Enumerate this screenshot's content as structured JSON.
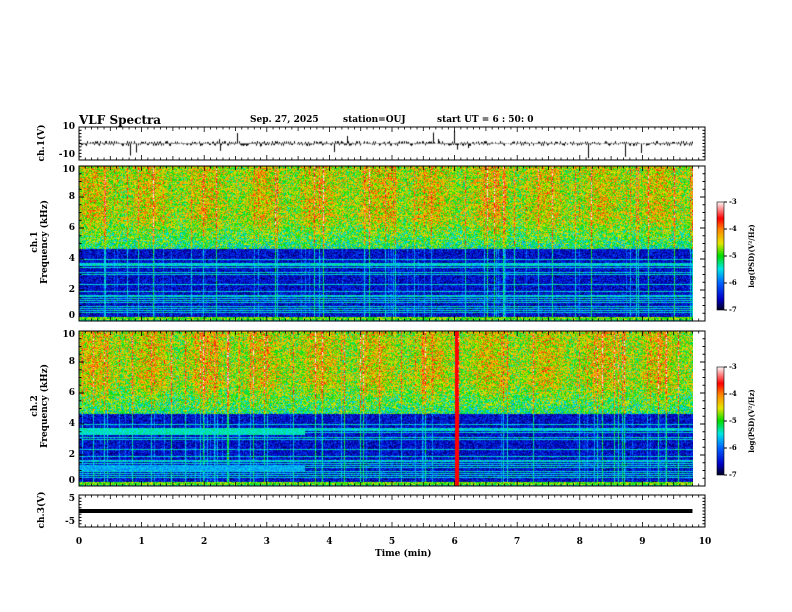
{
  "header": {
    "title": "VLF Spectra",
    "date": "Sep. 27, 2025",
    "station": "station=OUJ",
    "start_ut": "start  UT =  6 : 50: 0"
  },
  "chart_data": [
    {
      "type": "line",
      "name": "ch1 waveform",
      "ylabel": "ch.1(V)",
      "ylim": [
        -10,
        10
      ],
      "yticks": [
        "10",
        "-10"
      ],
      "xlim": [
        0,
        10
      ],
      "baseline": 0,
      "color": "#000000"
    },
    {
      "type": "heatmap",
      "name": "ch1 spectrogram",
      "ylabel": "ch.1\nFrequency (kHz)",
      "ylim": [
        0,
        10
      ],
      "yticks": [
        "0",
        "2",
        "4",
        "6",
        "8",
        "10"
      ],
      "xlim": [
        0,
        10
      ],
      "data_end_min": 9.8,
      "colorbar": {
        "label": "log(PSD)(V²/Hz)",
        "range": [
          -7,
          -3
        ],
        "ticks": [
          "-3",
          "-4",
          "-5",
          "-6",
          "-7"
        ]
      }
    },
    {
      "type": "heatmap",
      "name": "ch2 spectrogram",
      "ylabel": "ch.2\nFrequency (kHz)",
      "ylim": [
        0,
        10
      ],
      "yticks": [
        "0",
        "2",
        "4",
        "6",
        "8",
        "10"
      ],
      "xlim": [
        0,
        10
      ],
      "data_end_min": 9.8,
      "band_until_min": 3.6,
      "colorbar": {
        "label": "log(PSD)(V²/Hz)",
        "range": [
          -7,
          -3
        ],
        "ticks": [
          "-3",
          "-4",
          "-5",
          "-6",
          "-7"
        ]
      }
    },
    {
      "type": "line",
      "name": "ch3 waveform",
      "ylabel": "ch.3(V)",
      "ylim": [
        -5,
        5
      ],
      "yticks": [
        "5",
        "-5"
      ],
      "xlim": [
        0,
        10
      ],
      "constant_value": 0,
      "xlabel": "Time  (min)",
      "xticks": [
        "0",
        "1",
        "2",
        "3",
        "4",
        "5",
        "6",
        "7",
        "8",
        "9",
        "10"
      ]
    }
  ]
}
